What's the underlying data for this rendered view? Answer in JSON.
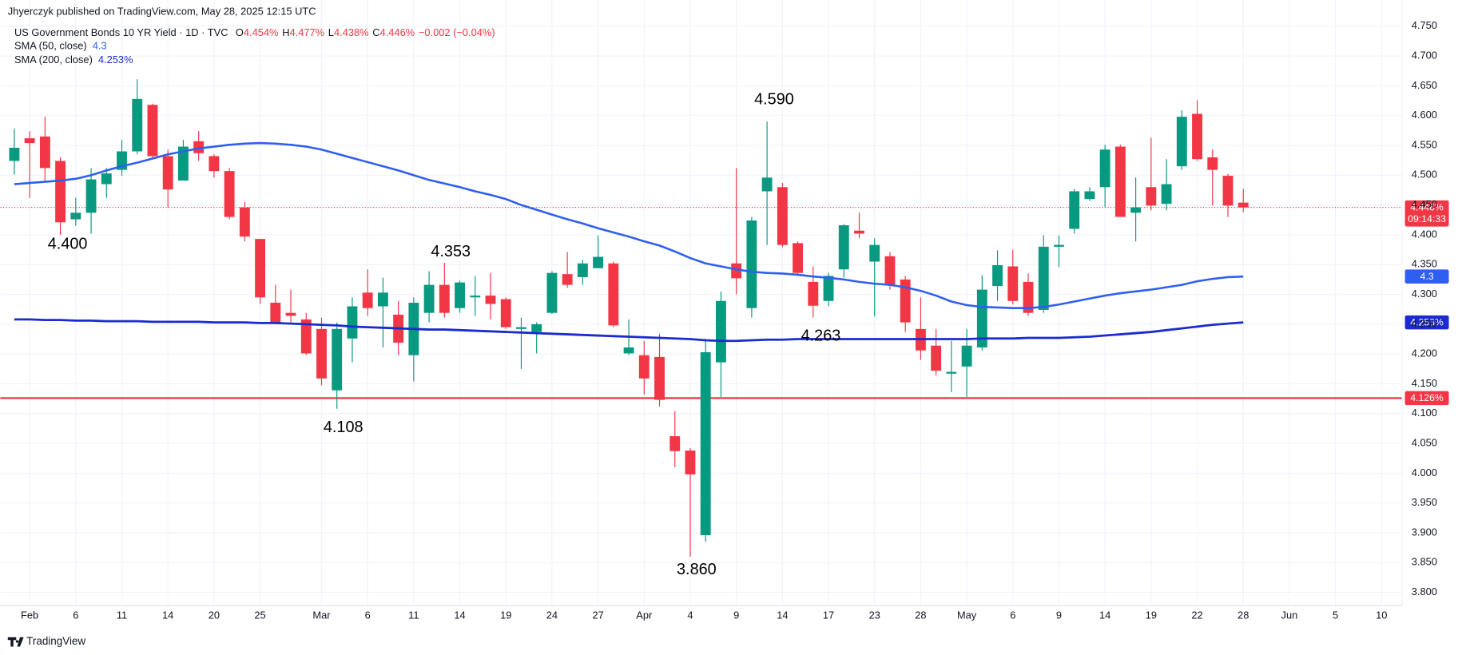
{
  "chart_data": {
    "type": "candlestick",
    "publisher": "Jhyerczyk published on TradingView.com, May 28, 2025 12:15 UTC",
    "title": "US Government Bonds 10 YR Yield · 1D · TVC",
    "ohlc_legend": [
      {
        "key": "O",
        "label": "4.454%"
      },
      {
        "key": "H",
        "label": "4.477%"
      },
      {
        "key": "L",
        "label": "4.438%"
      },
      {
        "key": "C",
        "label": "4.446%"
      }
    ],
    "change": "−0.002 (−0.04%)",
    "up_color": "#089981",
    "down_color": "#f23645",
    "open": [
      4.524,
      4.562,
      4.565,
      4.524,
      4.426,
      4.437,
      4.485,
      4.509,
      4.54,
      4.618,
      4.532,
      4.491,
      4.557,
      4.532,
      4.507,
      4.446,
      4.393,
      4.286,
      4.269,
      4.258,
      4.242,
      4.139,
      4.226,
      4.303,
      4.28,
      4.266,
      4.198,
      4.269,
      4.316,
      4.277,
      4.295,
      4.298,
      4.292,
      4.242,
      4.237,
      4.269,
      4.334,
      4.329,
      4.344,
      4.352,
      4.201,
      4.198,
      4.195,
      4.062,
      4.038,
      3.896,
      4.186,
      4.352,
      4.277,
      4.473,
      4.48,
      4.386,
      4.321,
      4.289,
      4.342,
      4.407,
      4.355,
      4.364,
      4.325,
      4.242,
      4.214,
      4.167,
      4.179,
      4.211,
      4.314,
      4.347,
      4.321,
      4.274,
      4.38,
      4.41,
      4.46,
      4.48,
      4.548,
      4.437,
      4.48,
      4.452,
      4.515,
      4.603,
      4.53,
      4.499,
      4.454
    ],
    "high": [
      4.578,
      4.574,
      4.598,
      4.53,
      4.462,
      4.512,
      4.512,
      4.559,
      4.661,
      4.62,
      4.543,
      4.559,
      4.574,
      4.535,
      4.512,
      4.455,
      4.393,
      4.316,
      4.308,
      4.269,
      4.261,
      4.253,
      4.295,
      4.342,
      4.328,
      4.289,
      4.295,
      4.339,
      4.353,
      4.323,
      4.331,
      4.336,
      4.295,
      4.261,
      4.253,
      4.339,
      4.371,
      4.358,
      4.399,
      4.355,
      4.258,
      4.222,
      4.234,
      4.104,
      4.042,
      4.226,
      4.305,
      4.512,
      4.43,
      4.59,
      4.487,
      4.389,
      4.347,
      4.336,
      4.418,
      4.437,
      4.394,
      4.371,
      4.331,
      4.295,
      4.242,
      4.222,
      4.242,
      4.332,
      4.374,
      4.375,
      4.335,
      4.399,
      4.399,
      4.477,
      4.48,
      4.551,
      4.551,
      4.496,
      4.563,
      4.527,
      4.609,
      4.626,
      4.543,
      4.502,
      4.477
    ],
    "low": [
      4.501,
      4.462,
      4.488,
      4.4,
      4.415,
      4.402,
      4.462,
      4.499,
      4.535,
      4.527,
      4.446,
      4.491,
      4.524,
      4.496,
      4.426,
      4.389,
      4.284,
      4.25,
      4.253,
      4.198,
      4.148,
      4.108,
      4.186,
      4.264,
      4.211,
      4.198,
      4.154,
      4.253,
      4.261,
      4.269,
      4.264,
      4.258,
      4.242,
      4.175,
      4.201,
      4.267,
      4.311,
      4.316,
      4.344,
      4.245,
      4.198,
      4.132,
      4.112,
      4.01,
      3.86,
      3.885,
      4.128,
      4.3,
      4.261,
      4.383,
      4.379,
      4.331,
      4.261,
      4.28,
      4.328,
      4.394,
      4.263,
      4.308,
      4.237,
      4.19,
      4.164,
      4.136,
      4.128,
      4.206,
      4.289,
      4.283,
      4.264,
      4.269,
      4.346,
      4.402,
      4.457,
      4.446,
      4.43,
      4.389,
      4.441,
      4.441,
      4.509,
      4.524,
      4.449,
      4.43,
      4.438
    ],
    "close": [
      4.546,
      4.554,
      4.512,
      4.421,
      4.437,
      4.493,
      4.503,
      4.54,
      4.628,
      4.532,
      4.476,
      4.548,
      4.537,
      4.507,
      4.43,
      4.397,
      4.295,
      4.253,
      4.264,
      4.201,
      4.159,
      4.242,
      4.28,
      4.277,
      4.303,
      4.219,
      4.286,
      4.316,
      4.269,
      4.32,
      4.298,
      4.284,
      4.245,
      4.245,
      4.25,
      4.336,
      4.316,
      4.352,
      4.363,
      4.248,
      4.211,
      4.159,
      4.123,
      4.037,
      3.998,
      4.203,
      4.289,
      4.327,
      4.424,
      4.496,
      4.383,
      4.336,
      4.281,
      4.331,
      4.416,
      4.402,
      4.383,
      4.316,
      4.253,
      4.206,
      4.172,
      4.17,
      4.214,
      4.308,
      4.349,
      4.289,
      4.269,
      4.38,
      4.383,
      4.473,
      4.473,
      4.543,
      4.43,
      4.446,
      4.449,
      4.485,
      4.598,
      4.527,
      4.509,
      4.449,
      4.446
    ],
    "series": [
      {
        "name": "SMA (50, close)",
        "color": "#2f5ff0",
        "value_label": "4.3",
        "values": [
          4.485,
          4.487,
          4.489,
          4.491,
          4.494,
          4.5,
          4.508,
          4.515,
          4.521,
          4.528,
          4.535,
          4.54,
          4.545,
          4.548,
          4.551,
          4.553,
          4.554,
          4.553,
          4.551,
          4.548,
          4.543,
          4.536,
          4.529,
          4.522,
          4.515,
          4.508,
          4.5,
          4.492,
          4.486,
          4.48,
          4.473,
          4.467,
          4.46,
          4.45,
          4.442,
          4.434,
          4.426,
          4.419,
          4.411,
          4.404,
          4.397,
          4.389,
          4.382,
          4.372,
          4.361,
          4.352,
          4.347,
          4.342,
          4.338,
          4.336,
          4.335,
          4.333,
          4.33,
          4.328,
          4.325,
          4.321,
          4.318,
          4.316,
          4.312,
          4.306,
          4.298,
          4.288,
          4.282,
          4.279,
          4.278,
          4.277,
          4.277,
          4.279,
          4.283,
          4.288,
          4.293,
          4.298,
          4.302,
          4.305,
          4.308,
          4.312,
          4.316,
          4.322,
          4.326,
          4.329,
          4.33
        ]
      },
      {
        "name": "SMA (200, close)",
        "color": "#1c2bd0",
        "value_label": "4.253%",
        "values": [
          4.258,
          4.258,
          4.257,
          4.257,
          4.256,
          4.256,
          4.255,
          4.255,
          4.255,
          4.254,
          4.254,
          4.254,
          4.254,
          4.253,
          4.253,
          4.253,
          4.252,
          4.252,
          4.251,
          4.25,
          4.249,
          4.248,
          4.246,
          4.245,
          4.244,
          4.243,
          4.242,
          4.241,
          4.241,
          4.24,
          4.239,
          4.238,
          4.237,
          4.236,
          4.235,
          4.234,
          4.233,
          4.232,
          4.231,
          4.23,
          4.229,
          4.228,
          4.227,
          4.226,
          4.225,
          4.223,
          4.222,
          4.222,
          4.223,
          4.224,
          4.224,
          4.225,
          4.225,
          4.225,
          4.225,
          4.225,
          4.225,
          4.225,
          4.225,
          4.225,
          4.225,
          4.225,
          4.225,
          4.226,
          4.226,
          4.226,
          4.227,
          4.227,
          4.227,
          4.228,
          4.229,
          4.231,
          4.233,
          4.235,
          4.237,
          4.24,
          4.243,
          4.246,
          4.249,
          4.251,
          4.253
        ]
      }
    ],
    "levels": [
      {
        "value": 4.126,
        "label": "4.126%",
        "color": "#f23645"
      }
    ],
    "last_price": {
      "value": 4.446,
      "label": "4.446%",
      "countdown": "09:14:33",
      "color": "#f23645"
    },
    "annotations": [
      "4.400",
      "4.353",
      "4.108",
      "3.860",
      "4.590",
      "4.263"
    ],
    "xlim": [
      -0.91,
      90.34
    ],
    "xticks": [
      {
        "value": 1,
        "label": "Feb"
      },
      {
        "value": 4,
        "label": "6"
      },
      {
        "value": 7,
        "label": "11"
      },
      {
        "value": 10,
        "label": "14"
      },
      {
        "value": 13,
        "label": "20"
      },
      {
        "value": 16,
        "label": "25"
      },
      {
        "value": 20,
        "label": "Mar"
      },
      {
        "value": 23,
        "label": "6"
      },
      {
        "value": 26,
        "label": "11"
      },
      {
        "value": 29,
        "label": "14"
      },
      {
        "value": 32,
        "label": "19"
      },
      {
        "value": 35,
        "label": "24"
      },
      {
        "value": 38,
        "label": "27"
      },
      {
        "value": 41,
        "label": "Apr"
      },
      {
        "value": 44,
        "label": "4"
      },
      {
        "value": 47,
        "label": "9"
      },
      {
        "value": 50,
        "label": "14"
      },
      {
        "value": 53,
        "label": "17"
      },
      {
        "value": 56,
        "label": "23"
      },
      {
        "value": 59,
        "label": "28"
      },
      {
        "value": 62,
        "label": "May"
      },
      {
        "value": 65,
        "label": "6"
      },
      {
        "value": 68,
        "label": "9"
      },
      {
        "value": 71,
        "label": "14"
      },
      {
        "value": 74,
        "label": "19"
      },
      {
        "value": 77,
        "label": "22"
      },
      {
        "value": 80,
        "label": "28"
      },
      {
        "value": 83,
        "label": "Jun"
      },
      {
        "value": 86,
        "label": "5"
      },
      {
        "value": 89,
        "label": "10"
      }
    ],
    "ylim": [
      3.778,
      4.794
    ],
    "yticks": [
      {
        "value": 3.8,
        "label": "3.800"
      },
      {
        "value": 3.85,
        "label": "3.850"
      },
      {
        "value": 3.9,
        "label": "3.900"
      },
      {
        "value": 3.95,
        "label": "3.950"
      },
      {
        "value": 4.0,
        "label": "4.000"
      },
      {
        "value": 4.05,
        "label": "4.050"
      },
      {
        "value": 4.1,
        "label": "4.100"
      },
      {
        "value": 4.15,
        "label": "4.150"
      },
      {
        "value": 4.2,
        "label": "4.200"
      },
      {
        "value": 4.25,
        "label": "4.250"
      },
      {
        "value": 4.3,
        "label": "4.300"
      },
      {
        "value": 4.35,
        "label": "4.350"
      },
      {
        "value": 4.4,
        "label": "4.400"
      },
      {
        "value": 4.45,
        "label": "4.450"
      },
      {
        "value": 4.5,
        "label": "4.500"
      },
      {
        "value": 4.55,
        "label": "4.550"
      },
      {
        "value": 4.6,
        "label": "4.600"
      },
      {
        "value": 4.65,
        "label": "4.650"
      },
      {
        "value": 4.7,
        "label": "4.700"
      },
      {
        "value": 4.75,
        "label": "4.750"
      }
    ],
    "grid": true,
    "brand": "TradingView"
  }
}
